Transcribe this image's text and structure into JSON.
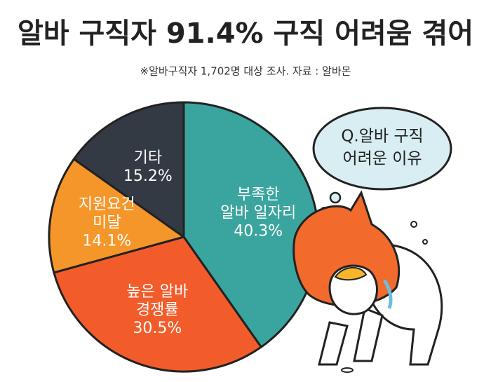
{
  "chart_data": {
    "type": "pie",
    "title": "알바 구직자 91.4% 구직 어려움 겪어",
    "subtitle": "※알바구직자 1,702명 대상 조사. 자료 : 알바몬",
    "annotation": [
      "Q.알바 구직",
      "어려운 이유"
    ],
    "categories": [
      [
        "부족한",
        "알바 일자리"
      ],
      [
        "높은 알바",
        "경쟁률"
      ],
      [
        "지원요건",
        "미달"
      ],
      [
        "기타"
      ]
    ],
    "values": [
      40.3,
      30.5,
      14.1,
      15.2
    ],
    "value_labels": [
      "40.3%",
      "30.5%",
      "14.1%",
      "15.2%"
    ],
    "colors": [
      "#3aa59f",
      "#f25c2a",
      "#f5962a",
      "#343a44"
    ]
  }
}
